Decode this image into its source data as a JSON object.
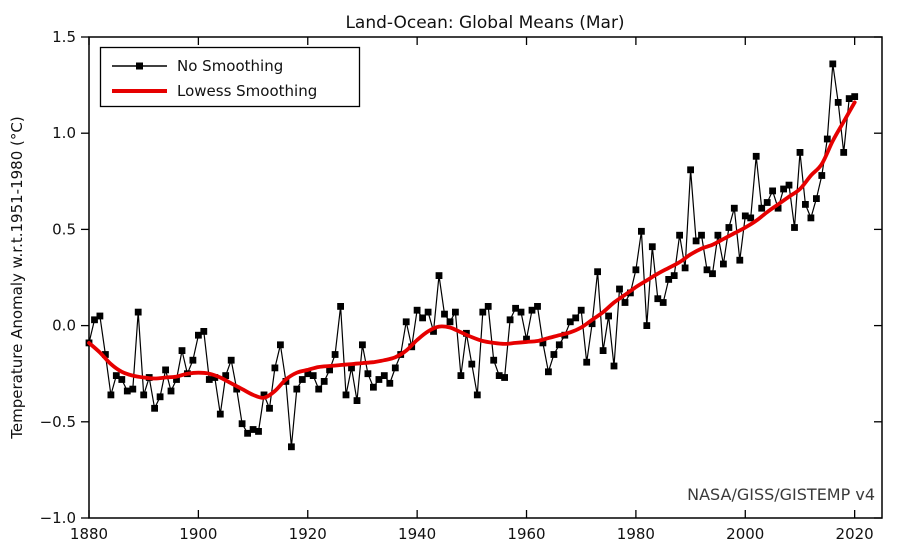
{
  "chart": {
    "title": "Land-Ocean: Global Means (Mar)",
    "ylabel": "Temperature Anomaly w.r.t.1951-1980 (°C)",
    "watermark": "NASA/GISS/GISTEMP v4",
    "legend": [
      {
        "label": "No Smoothing"
      },
      {
        "label": "Lowess Smoothing"
      }
    ],
    "colors": {
      "no_smoothing": "#000000",
      "lowess": "#e60000",
      "watermark": "#3a3a3a",
      "axis": "#000000"
    }
  },
  "chart_data": {
    "type": "line",
    "title": "Land-Ocean: Global Means (Mar)",
    "xlabel": "",
    "ylabel": "Temperature Anomaly w.r.t.1951-1980 (°C)",
    "xlim": [
      1880,
      2025
    ],
    "ylim": [
      -1.0,
      1.5
    ],
    "xticks": [
      1880,
      1900,
      1920,
      1940,
      1960,
      1980,
      2000,
      2020
    ],
    "yticks": [
      -1.0,
      -0.5,
      0.0,
      0.5,
      1.0,
      1.5
    ],
    "grid": false,
    "legend_position": "upper left",
    "annotations": [
      {
        "text": "NASA/GISS/GISTEMP v4",
        "position": "lower right"
      }
    ],
    "series": [
      {
        "name": "No Smoothing",
        "style": "line+square-markers",
        "color": "#000000",
        "x": [
          1880,
          1881,
          1882,
          1883,
          1884,
          1885,
          1886,
          1887,
          1888,
          1889,
          1890,
          1891,
          1892,
          1893,
          1894,
          1895,
          1896,
          1897,
          1898,
          1899,
          1900,
          1901,
          1902,
          1903,
          1904,
          1905,
          1906,
          1907,
          1908,
          1909,
          1910,
          1911,
          1912,
          1913,
          1914,
          1915,
          1916,
          1917,
          1918,
          1919,
          1920,
          1921,
          1922,
          1923,
          1924,
          1925,
          1926,
          1927,
          1928,
          1929,
          1930,
          1931,
          1932,
          1933,
          1934,
          1935,
          1936,
          1937,
          1938,
          1939,
          1940,
          1941,
          1942,
          1943,
          1944,
          1945,
          1946,
          1947,
          1948,
          1949,
          1950,
          1951,
          1952,
          1953,
          1954,
          1955,
          1956,
          1957,
          1958,
          1959,
          1960,
          1961,
          1962,
          1963,
          1964,
          1965,
          1966,
          1967,
          1968,
          1969,
          1970,
          1971,
          1972,
          1973,
          1974,
          1975,
          1976,
          1977,
          1978,
          1979,
          1980,
          1981,
          1982,
          1983,
          1984,
          1985,
          1986,
          1987,
          1988,
          1989,
          1990,
          1991,
          1992,
          1993,
          1994,
          1995,
          1996,
          1997,
          1998,
          1999,
          2000,
          2001,
          2002,
          2003,
          2004,
          2005,
          2006,
          2007,
          2008,
          2009,
          2010,
          2011,
          2012,
          2013,
          2014,
          2015,
          2016,
          2017,
          2018,
          2019,
          2020
        ],
        "y": [
          -0.09,
          0.03,
          0.05,
          -0.15,
          -0.36,
          -0.26,
          -0.28,
          -0.34,
          -0.33,
          0.07,
          -0.36,
          -0.27,
          -0.43,
          -0.37,
          -0.23,
          -0.34,
          -0.28,
          -0.13,
          -0.25,
          -0.18,
          -0.05,
          -0.03,
          -0.28,
          -0.27,
          -0.46,
          -0.26,
          -0.18,
          -0.33,
          -0.51,
          -0.56,
          -0.54,
          -0.55,
          -0.36,
          -0.43,
          -0.22,
          -0.1,
          -0.29,
          -0.63,
          -0.33,
          -0.28,
          -0.25,
          -0.26,
          -0.33,
          -0.29,
          -0.23,
          -0.15,
          0.1,
          -0.36,
          -0.22,
          -0.39,
          -0.1,
          -0.25,
          -0.32,
          -0.28,
          -0.26,
          -0.3,
          -0.22,
          -0.15,
          0.02,
          -0.11,
          0.08,
          0.04,
          0.07,
          -0.03,
          0.26,
          0.06,
          0.02,
          0.07,
          -0.26,
          -0.04,
          -0.2,
          -0.36,
          0.07,
          0.1,
          -0.18,
          -0.26,
          -0.27,
          0.03,
          0.09,
          0.07,
          -0.07,
          0.08,
          0.1,
          -0.09,
          -0.24,
          -0.15,
          -0.1,
          -0.05,
          0.02,
          0.04,
          0.08,
          -0.19,
          0.01,
          0.28,
          -0.13,
          0.05,
          -0.21,
          0.19,
          0.12,
          0.17,
          0.29,
          0.49,
          0.0,
          0.41,
          0.14,
          0.12,
          0.24,
          0.26,
          0.47,
          0.3,
          0.81,
          0.44,
          0.47,
          0.29,
          0.27,
          0.47,
          0.32,
          0.51,
          0.61,
          0.34,
          0.57,
          0.56,
          0.88,
          0.61,
          0.64,
          0.7,
          0.61,
          0.71,
          0.73,
          0.51,
          0.9,
          0.63,
          0.56,
          0.66,
          0.78,
          0.97,
          1.36,
          1.16,
          0.9,
          1.18,
          1.19
        ]
      },
      {
        "name": "Lowess Smoothing",
        "style": "line",
        "color": "#e60000",
        "x": [
          1880,
          1882,
          1884,
          1886,
          1888,
          1890,
          1892,
          1894,
          1896,
          1898,
          1900,
          1902,
          1904,
          1906,
          1908,
          1910,
          1912,
          1914,
          1916,
          1918,
          1920,
          1922,
          1924,
          1926,
          1928,
          1930,
          1932,
          1934,
          1936,
          1938,
          1940,
          1942,
          1944,
          1946,
          1948,
          1950,
          1952,
          1954,
          1956,
          1958,
          1960,
          1962,
          1964,
          1966,
          1968,
          1970,
          1972,
          1974,
          1976,
          1978,
          1980,
          1982,
          1984,
          1986,
          1988,
          1990,
          1992,
          1994,
          1996,
          1998,
          2000,
          2002,
          2004,
          2006,
          2008,
          2010,
          2012,
          2014,
          2016,
          2018,
          2020
        ],
        "y": [
          -0.09,
          -0.14,
          -0.2,
          -0.24,
          -0.26,
          -0.27,
          -0.275,
          -0.27,
          -0.265,
          -0.25,
          -0.245,
          -0.25,
          -0.27,
          -0.3,
          -0.33,
          -0.36,
          -0.375,
          -0.34,
          -0.28,
          -0.245,
          -0.23,
          -0.215,
          -0.21,
          -0.205,
          -0.2,
          -0.195,
          -0.19,
          -0.18,
          -0.165,
          -0.13,
          -0.075,
          -0.03,
          -0.005,
          -0.01,
          -0.035,
          -0.06,
          -0.08,
          -0.09,
          -0.095,
          -0.09,
          -0.085,
          -0.08,
          -0.065,
          -0.05,
          -0.035,
          -0.01,
          0.03,
          0.07,
          0.12,
          0.16,
          0.2,
          0.235,
          0.27,
          0.3,
          0.33,
          0.37,
          0.4,
          0.42,
          0.45,
          0.48,
          0.51,
          0.545,
          0.59,
          0.63,
          0.67,
          0.71,
          0.78,
          0.84,
          0.96,
          1.06,
          1.16
        ]
      }
    ]
  }
}
